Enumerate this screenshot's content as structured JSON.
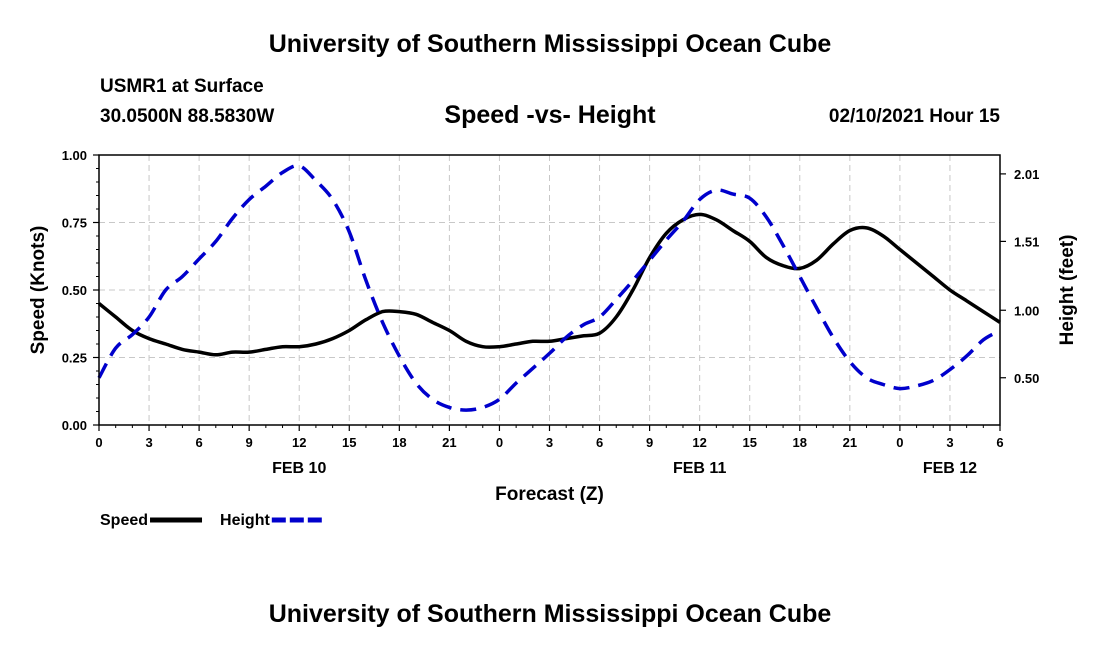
{
  "header": {
    "title": "University of Southern Mississippi Ocean Cube",
    "station": "USMR1 at Surface",
    "coords": "30.0500N 88.5830W",
    "datetime": "02/10/2021 Hour 15"
  },
  "footer": {
    "title": "University of Southern Mississippi Ocean Cube"
  },
  "chart_data": {
    "type": "line",
    "title": "Speed -vs- Height",
    "xlabel": "Forecast (Z)",
    "ylabel": "Speed (Knots)",
    "y2label": "Height (feet)",
    "grid": true,
    "legend_position": "bottom-left",
    "xlim": [
      0,
      54
    ],
    "ylim": [
      0,
      1
    ],
    "y2lim": [
      0.15,
      2.15
    ],
    "x_tick_values": [
      0,
      3,
      6,
      9,
      12,
      15,
      18,
      21,
      24,
      27,
      30,
      33,
      36,
      39,
      42,
      45,
      48,
      51,
      54
    ],
    "x_tick_labels": [
      "0",
      "3",
      "6",
      "9",
      "12",
      "15",
      "18",
      "21",
      "0",
      "3",
      "6",
      "9",
      "12",
      "15",
      "18",
      "21",
      "0",
      "3",
      "6"
    ],
    "date_labels": [
      {
        "x": 12,
        "label": "FEB 10"
      },
      {
        "x": 36,
        "label": "FEB 11"
      },
      {
        "x": 51,
        "label": "FEB 12"
      }
    ],
    "y_ticks": [
      {
        "value": 0,
        "label": "0.00"
      },
      {
        "value": 0.25,
        "label": "0.25"
      },
      {
        "value": 0.5,
        "label": "0.50"
      },
      {
        "value": 0.75,
        "label": "0.75"
      },
      {
        "value": 1.0,
        "label": "1.00"
      }
    ],
    "y2_ticks": [
      {
        "value": 0.5,
        "label": "0.50"
      },
      {
        "value": 1.0,
        "label": "1.00"
      },
      {
        "value": 1.51,
        "label": "1.51"
      },
      {
        "value": 2.01,
        "label": "2.01"
      }
    ],
    "series": [
      {
        "name": "Speed",
        "axis": "left",
        "color": "#000000",
        "style": "solid",
        "x": [
          0,
          1,
          2,
          3,
          4,
          5,
          6,
          7,
          8,
          9,
          10,
          11,
          12,
          13,
          14,
          15,
          16,
          17,
          18,
          19,
          20,
          21,
          22,
          23,
          24,
          25,
          26,
          27,
          28,
          29,
          30,
          31,
          32,
          33,
          34,
          35,
          36,
          37,
          38,
          39,
          40,
          41,
          42,
          43,
          44,
          45,
          46,
          47,
          48,
          49,
          50,
          51,
          52,
          53,
          54
        ],
        "values": [
          0.45,
          0.4,
          0.35,
          0.32,
          0.3,
          0.28,
          0.27,
          0.26,
          0.27,
          0.27,
          0.28,
          0.29,
          0.29,
          0.3,
          0.32,
          0.35,
          0.39,
          0.42,
          0.42,
          0.41,
          0.38,
          0.35,
          0.31,
          0.29,
          0.29,
          0.3,
          0.31,
          0.31,
          0.32,
          0.33,
          0.34,
          0.4,
          0.5,
          0.62,
          0.71,
          0.76,
          0.78,
          0.76,
          0.72,
          0.68,
          0.62,
          0.59,
          0.58,
          0.61,
          0.67,
          0.72,
          0.73,
          0.7,
          0.65,
          0.6,
          0.55,
          0.5,
          0.46,
          0.42,
          0.38
        ]
      },
      {
        "name": "Height",
        "axis": "right",
        "color": "#0000cc",
        "style": "dashed",
        "x": [
          0,
          1,
          2,
          3,
          4,
          5,
          6,
          7,
          8,
          9,
          10,
          11,
          12,
          13,
          14,
          15,
          16,
          17,
          18,
          19,
          20,
          21,
          22,
          23,
          24,
          25,
          26,
          27,
          28,
          29,
          30,
          31,
          32,
          33,
          34,
          35,
          36,
          37,
          38,
          39,
          40,
          41,
          42,
          43,
          44,
          45,
          46,
          47,
          48,
          49,
          50,
          51,
          52,
          53,
          54
        ],
        "values": [
          0.5,
          0.72,
          0.82,
          0.95,
          1.15,
          1.25,
          1.38,
          1.51,
          1.68,
          1.82,
          1.92,
          2.02,
          2.07,
          1.96,
          1.82,
          1.58,
          1.22,
          0.91,
          0.66,
          0.46,
          0.34,
          0.28,
          0.26,
          0.28,
          0.34,
          0.46,
          0.57,
          0.68,
          0.8,
          0.89,
          0.95,
          1.08,
          1.22,
          1.37,
          1.52,
          1.66,
          1.82,
          1.89,
          1.86,
          1.83,
          1.69,
          1.48,
          1.25,
          1.02,
          0.8,
          0.62,
          0.5,
          0.45,
          0.42,
          0.44,
          0.48,
          0.56,
          0.66,
          0.78,
          0.85
        ]
      }
    ]
  }
}
